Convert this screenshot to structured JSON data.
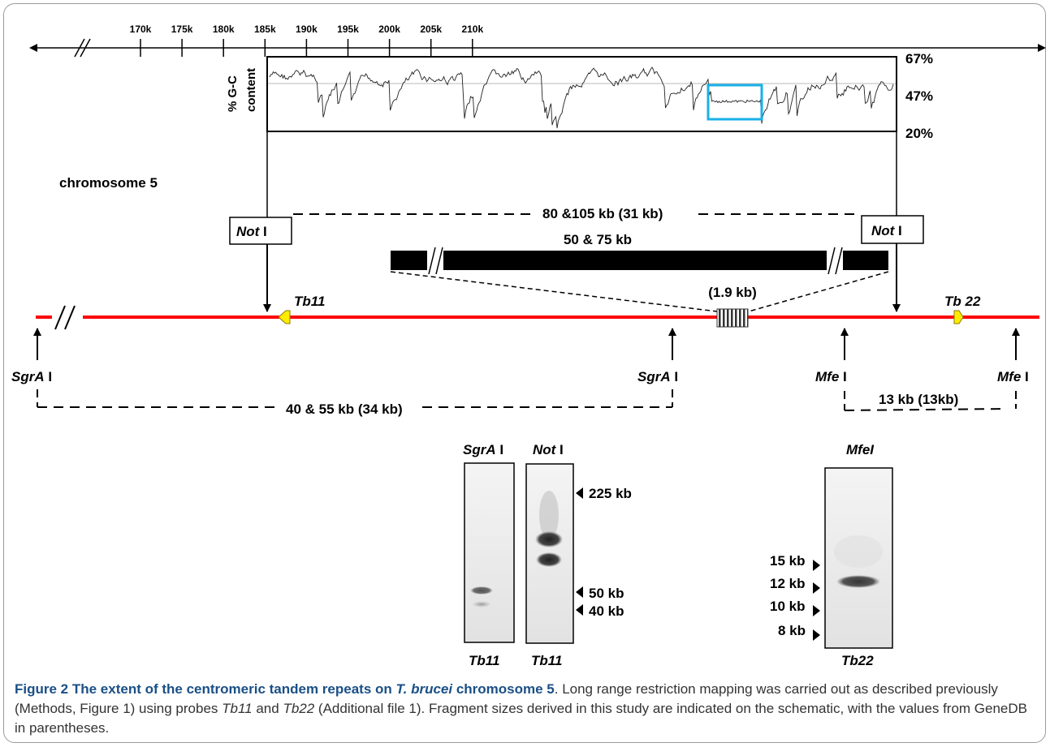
{
  "axis": {
    "ticks": [
      "170k",
      "175k",
      "180k",
      "185k",
      "190k",
      "195k",
      "200k",
      "205k",
      "210k"
    ]
  },
  "gc_panel": {
    "ylabel_line1": "% G-C",
    "ylabel_line2": "content",
    "levels": [
      "67%",
      "47%",
      "20%"
    ]
  },
  "chromosome_label": "chromosome 5",
  "enzymes": {
    "not_italic": "Not",
    "not_suffix": " I",
    "sgra_italic": "SgrA",
    "sgra_suffix": " I",
    "mfe_italic": "Mfe",
    "mfe_suffix": " I",
    "mfel": "MfeI"
  },
  "fragments": {
    "not_fragment": "80 &105 kb (31 kb)",
    "repeat_block": "50 &  75 kb",
    "repeat_unit": "(1.9 kb)",
    "sgra_fragment": "40 & 55 kb (34 kb)",
    "mfe_fragment": "13 kb (13kb)"
  },
  "probes": {
    "tb11": "Tb11",
    "tb22_map": "Tb 22",
    "tb22": "Tb22"
  },
  "blots": {
    "not_markers": [
      "225 kb",
      "50 kb",
      "40 kb"
    ],
    "mfe_markers": [
      "15 kb",
      "12 kb",
      "10 kb",
      "8 kb"
    ]
  },
  "colors": {
    "chromosome_line": "#ff0000",
    "probe_marker": "#ffec00",
    "highlight_box": "#1ab0e8",
    "caption_title": "#1a4f86"
  },
  "caption": {
    "title_a": "Figure 2 The extent of the centromeric tandem repeats on ",
    "title_species": "T. brucei",
    "title_b": " chromosome 5",
    "text_a": ". Long range restriction mapping was carried out as described previously (Methods, Figure 1) using probes ",
    "probe_1": "Tb11",
    "text_b": " and ",
    "probe_2": "Tb22",
    "text_c": " (Additional file 1). Fragment sizes derived in this study are indicated on the schematic, with the values from GeneDB in parentheses."
  }
}
